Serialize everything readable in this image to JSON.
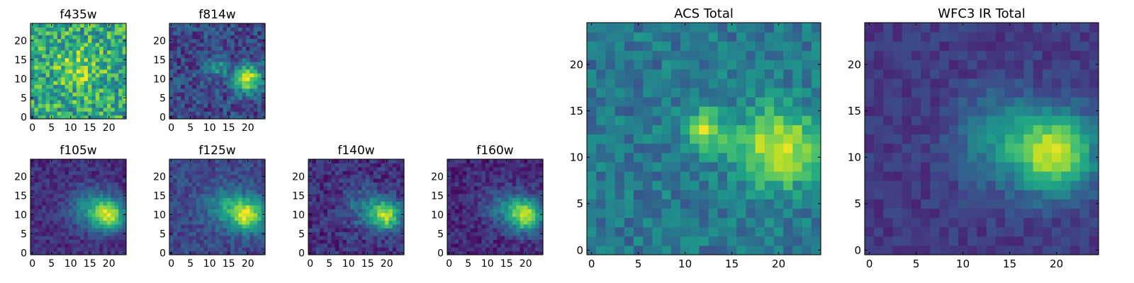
{
  "chart_data": [
    {
      "type": "heatmap",
      "title": "f435w",
      "grid": false,
      "shape": [
        25,
        25
      ],
      "xlim": [
        -0.5,
        24.5
      ],
      "ylim": [
        -0.5,
        24.5
      ],
      "xticks": [
        0,
        5,
        10,
        15,
        20
      ],
      "yticks": [
        0,
        5,
        10,
        15,
        20
      ],
      "colormap": "viridis",
      "sources": [
        {
          "x": 12,
          "y": 13,
          "amp": 0.2,
          "sigma": 4
        }
      ],
      "background": 0.6,
      "noise": 0.26
    },
    {
      "type": "heatmap",
      "title": "f814w",
      "grid": false,
      "shape": [
        25,
        25
      ],
      "xlim": [
        -0.5,
        24.5
      ],
      "ylim": [
        -0.5,
        24.5
      ],
      "xticks": [
        0,
        5,
        10,
        15,
        20
      ],
      "yticks": [
        0,
        5,
        10,
        15,
        20
      ],
      "colormap": "viridis",
      "sources": [
        {
          "x": 20,
          "y": 10,
          "amp": 0.7,
          "sigma": 2.6
        },
        {
          "x": 12,
          "y": 13,
          "amp": 0.35,
          "sigma": 1.8
        }
      ],
      "background": 0.22,
      "noise": 0.16
    },
    {
      "type": "heatmap",
      "title": "f105w",
      "grid": false,
      "shape": [
        25,
        25
      ],
      "xlim": [
        -0.5,
        24.5
      ],
      "ylim": [
        -0.5,
        24.5
      ],
      "xticks": [
        0,
        5,
        10,
        15,
        20
      ],
      "yticks": [
        0,
        5,
        10,
        15,
        20
      ],
      "colormap": "viridis",
      "sources": [
        {
          "x": 20,
          "y": 10,
          "amp": 0.75,
          "sigma": 3
        },
        {
          "x": 14,
          "y": 12,
          "amp": 0.3,
          "sigma": 3.5
        }
      ],
      "background": 0.14,
      "noise": 0.09
    },
    {
      "type": "heatmap",
      "title": "f125w",
      "grid": false,
      "shape": [
        25,
        25
      ],
      "xlim": [
        -0.5,
        24.5
      ],
      "ylim": [
        -0.5,
        24.5
      ],
      "xticks": [
        0,
        5,
        10,
        15,
        20
      ],
      "yticks": [
        0,
        5,
        10,
        15,
        20
      ],
      "colormap": "viridis",
      "sources": [
        {
          "x": 20,
          "y": 10,
          "amp": 0.7,
          "sigma": 3
        },
        {
          "x": 14,
          "y": 12,
          "amp": 0.3,
          "sigma": 3.5
        }
      ],
      "background": 0.22,
      "noise": 0.1
    },
    {
      "type": "heatmap",
      "title": "f140w",
      "grid": false,
      "shape": [
        25,
        25
      ],
      "xlim": [
        -0.5,
        24.5
      ],
      "ylim": [
        -0.5,
        24.5
      ],
      "xticks": [
        0,
        5,
        10,
        15,
        20
      ],
      "yticks": [
        0,
        5,
        10,
        15,
        20
      ],
      "colormap": "viridis",
      "sources": [
        {
          "x": 20,
          "y": 10,
          "amp": 0.72,
          "sigma": 2.8
        },
        {
          "x": 14,
          "y": 12,
          "amp": 0.25,
          "sigma": 3.5
        }
      ],
      "background": 0.14,
      "noise": 0.12
    },
    {
      "type": "heatmap",
      "title": "f160w",
      "grid": false,
      "shape": [
        25,
        25
      ],
      "xlim": [
        -0.5,
        24.5
      ],
      "ylim": [
        -0.5,
        24.5
      ],
      "xticks": [
        0,
        5,
        10,
        15,
        20
      ],
      "yticks": [
        0,
        5,
        10,
        15,
        20
      ],
      "colormap": "viridis",
      "sources": [
        {
          "x": 20,
          "y": 10,
          "amp": 0.78,
          "sigma": 3
        },
        {
          "x": 14,
          "y": 12,
          "amp": 0.25,
          "sigma": 3.5
        }
      ],
      "background": 0.12,
      "noise": 0.1
    },
    {
      "type": "heatmap",
      "title": "ACS Total",
      "grid": false,
      "shape": [
        25,
        25
      ],
      "xlim": [
        -0.5,
        24.5
      ],
      "ylim": [
        -0.5,
        24.5
      ],
      "xticks": [
        0,
        5,
        10,
        15,
        20
      ],
      "yticks": [
        0,
        5,
        10,
        15,
        20
      ],
      "colormap": "viridis",
      "sources": [
        {
          "x": 20,
          "y": 11,
          "amp": 0.55,
          "sigma": 3
        },
        {
          "x": 12,
          "y": 13,
          "amp": 0.45,
          "sigma": 1.6
        }
      ],
      "background": 0.4,
      "noise": 0.13
    },
    {
      "type": "heatmap",
      "title": "WFC3 IR Total",
      "grid": false,
      "shape": [
        25,
        25
      ],
      "xlim": [
        -0.5,
        24.5
      ],
      "ylim": [
        -0.5,
        24.5
      ],
      "xticks": [
        0,
        5,
        10,
        15,
        20
      ],
      "yticks": [
        0,
        5,
        10,
        15,
        20
      ],
      "colormap": "viridis",
      "sources": [
        {
          "x": 20,
          "y": 10.5,
          "amp": 0.7,
          "sigma": 3
        },
        {
          "x": 14,
          "y": 12,
          "amp": 0.3,
          "sigma": 3.5
        }
      ],
      "background": 0.17,
      "noise": 0.07
    }
  ]
}
